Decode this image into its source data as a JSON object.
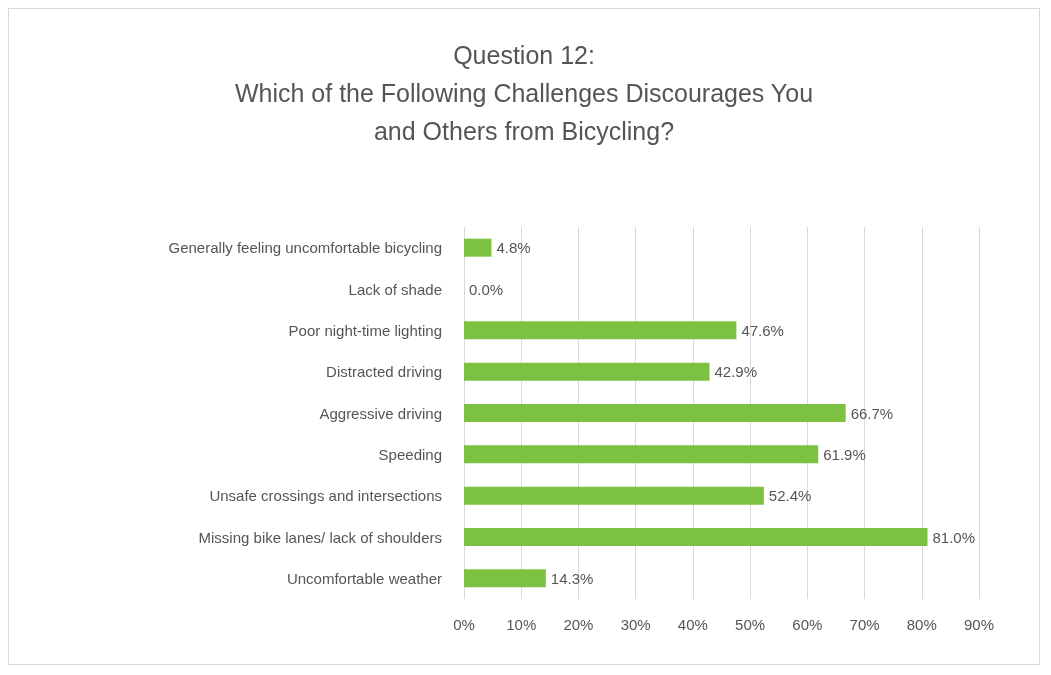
{
  "chart_data": {
    "type": "bar",
    "orientation": "horizontal",
    "title": "Question 12:\nWhich of the Following Challenges Discourages You\nand Others from Bicycling?",
    "categories": [
      "Generally feeling uncomfortable bicycling",
      "Lack of shade",
      "Poor night-time lighting",
      "Distracted driving",
      "Aggressive driving",
      "Speeding",
      "Unsafe crossings and intersections",
      "Missing bike lanes/ lack of shoulders",
      "Uncomfortable weather"
    ],
    "values": [
      4.8,
      0.0,
      47.6,
      42.9,
      66.7,
      61.9,
      52.4,
      81.0,
      14.3
    ],
    "value_labels": [
      "4.8%",
      "0.0%",
      "47.6%",
      "42.9%",
      "66.7%",
      "61.9%",
      "52.4%",
      "81.0%",
      "14.3%"
    ],
    "color": "#7cc142",
    "xlim": [
      0,
      90
    ],
    "xticks": [
      {
        "value": 0,
        "label": "0%"
      },
      {
        "value": 10,
        "label": "10%"
      },
      {
        "value": 20,
        "label": "20%"
      },
      {
        "value": 30,
        "label": "30%"
      },
      {
        "value": 40,
        "label": "40%"
      },
      {
        "value": 50,
        "label": "50%"
      },
      {
        "value": 60,
        "label": "60%"
      },
      {
        "value": 70,
        "label": "70%"
      },
      {
        "value": 80,
        "label": "80%"
      },
      {
        "value": 90,
        "label": "90%"
      }
    ],
    "grid": "x"
  }
}
